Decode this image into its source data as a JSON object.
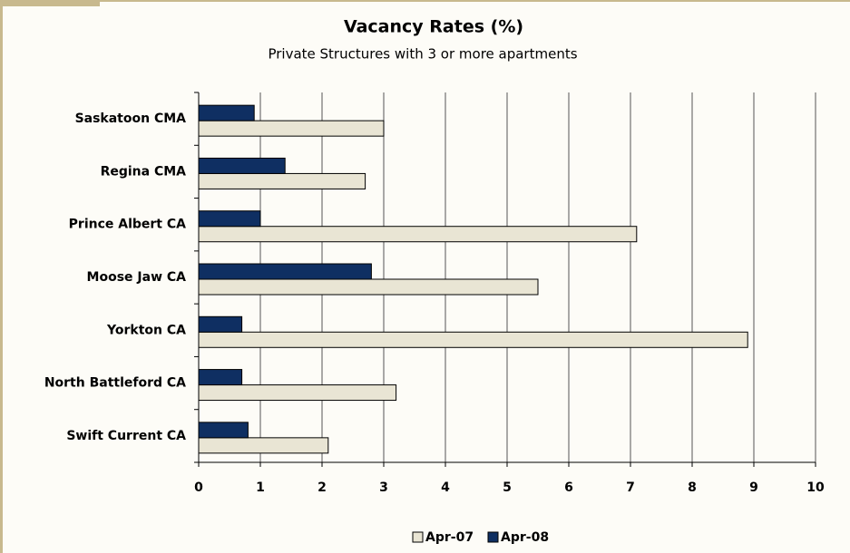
{
  "chart_data": {
    "type": "bar",
    "orientation": "horizontal",
    "title": "Vacancy Rates (%)",
    "subtitle": "Private Structures with 3 or more apartments",
    "categories": [
      "Saskatoon CMA",
      "Regina CMA",
      "Prince Albert CA",
      "Moose Jaw CA",
      "Yorkton CA",
      "North Battleford CA",
      "Swift Current CA"
    ],
    "series": [
      {
        "name": "Apr-07",
        "color": "#e9e5d4",
        "values": [
          3.0,
          2.7,
          7.1,
          5.5,
          8.9,
          3.2,
          2.1
        ]
      },
      {
        "name": "Apr-08",
        "color": "#0f2f62",
        "values": [
          0.9,
          1.4,
          1.0,
          2.8,
          0.7,
          0.7,
          0.8
        ]
      }
    ],
    "xlim": [
      0,
      10
    ],
    "xticks": [
      0,
      1,
      2,
      3,
      4,
      5,
      6,
      7,
      8,
      9,
      10
    ],
    "grid": true,
    "legend": "bottom"
  }
}
